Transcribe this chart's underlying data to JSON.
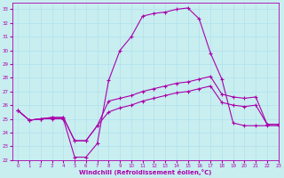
{
  "xlabel": "Windchill (Refroidissement éolien,°C)",
  "bg_color": "#c8eef0",
  "line_color": "#aa00aa",
  "xlim": [
    -0.5,
    23
  ],
  "ylim": [
    22,
    33.5
  ],
  "yticks": [
    22,
    23,
    24,
    25,
    26,
    27,
    28,
    29,
    30,
    31,
    32,
    33
  ],
  "xticks": [
    0,
    1,
    2,
    3,
    4,
    5,
    6,
    7,
    8,
    9,
    10,
    11,
    12,
    13,
    14,
    15,
    16,
    17,
    18,
    19,
    20,
    21,
    22,
    23
  ],
  "line1_x": [
    0,
    1,
    2,
    3,
    4,
    5,
    6,
    7,
    8,
    9,
    10,
    11,
    12,
    13,
    14,
    15,
    16,
    17,
    18,
    19,
    20,
    21,
    22,
    23
  ],
  "line1_y": [
    25.6,
    24.9,
    25.0,
    25.0,
    25.0,
    22.2,
    22.2,
    23.2,
    27.8,
    30.0,
    31.0,
    32.5,
    32.7,
    32.8,
    33.0,
    33.1,
    32.3,
    29.8,
    27.9,
    24.7,
    24.5,
    24.5,
    24.5,
    24.5
  ],
  "line2_x": [
    0,
    1,
    2,
    3,
    4,
    5,
    6,
    7,
    8,
    9,
    10,
    11,
    12,
    13,
    14,
    15,
    16,
    17,
    18,
    19,
    20,
    21,
    22,
    23
  ],
  "line2_y": [
    25.6,
    24.9,
    25.0,
    25.1,
    25.1,
    23.4,
    23.4,
    24.5,
    26.3,
    26.5,
    26.7,
    27.0,
    27.2,
    27.4,
    27.6,
    27.7,
    27.9,
    28.1,
    26.8,
    26.6,
    26.5,
    26.6,
    24.6,
    24.6
  ],
  "line3_x": [
    0,
    1,
    2,
    3,
    4,
    5,
    6,
    7,
    8,
    9,
    10,
    11,
    12,
    13,
    14,
    15,
    16,
    17,
    18,
    19,
    20,
    21,
    22,
    23
  ],
  "line3_y": [
    25.6,
    24.9,
    25.0,
    25.1,
    25.1,
    23.4,
    23.4,
    24.5,
    25.5,
    25.8,
    26.0,
    26.3,
    26.5,
    26.7,
    26.9,
    27.0,
    27.2,
    27.4,
    26.2,
    26.0,
    25.9,
    26.0,
    24.6,
    24.6
  ],
  "grid_color": "#aaddee",
  "marker": "+"
}
